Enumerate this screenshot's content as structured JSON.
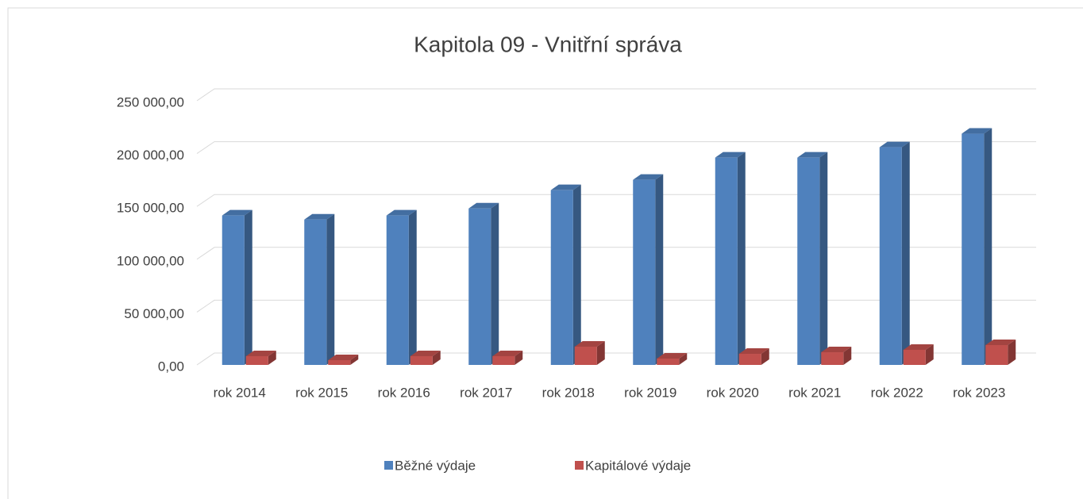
{
  "chart_data": {
    "type": "bar3d",
    "title": "Kapitola 09 - Vnitřní správa",
    "categories": [
      "rok 2014",
      "rok 2015",
      "rok 2016",
      "rok 2017",
      "rok 2018",
      "rok 2019",
      "rok 2020",
      "rok 2021",
      "rok 2022",
      "rok 2023"
    ],
    "series": [
      {
        "name": "Běžné výdaje",
        "color": "#4f81bd",
        "values": [
          141400,
          137600,
          141400,
          148100,
          165400,
          175200,
          196200,
          196200,
          206000,
          218800
        ]
      },
      {
        "name": "Kapitálové výdaje",
        "color": "#c0504d",
        "values": [
          8300,
          4500,
          8300,
          8300,
          17300,
          6000,
          10500,
          12000,
          14300,
          18800
        ]
      }
    ],
    "ylim": [
      0,
      250000
    ],
    "yticks": [
      {
        "value": 0,
        "label": "0,00"
      },
      {
        "value": 50000,
        "label": "50 000,00"
      },
      {
        "value": 100000,
        "label": "100 000,00"
      },
      {
        "value": 150000,
        "label": "150 000,00"
      },
      {
        "value": 200000,
        "label": "200 000,00"
      },
      {
        "value": 250000,
        "label": "250 000,00"
      }
    ],
    "grid": true,
    "legend": "bottom"
  }
}
